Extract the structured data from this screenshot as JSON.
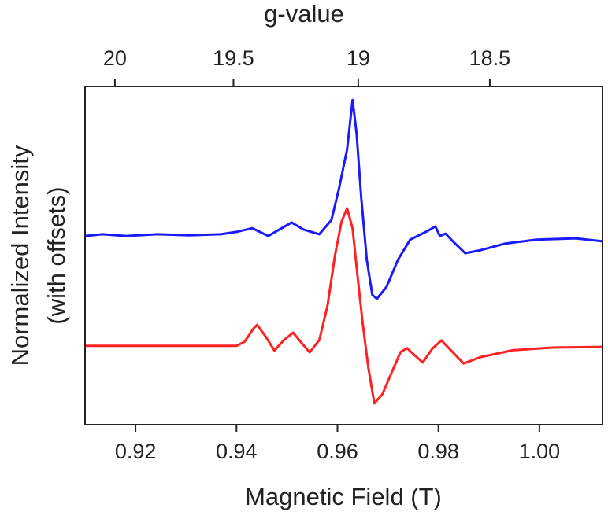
{
  "chart_data": {
    "type": "line",
    "xlabel": "Magnetic Field (T)",
    "ylabel": [
      "Normalized Intensity",
      "(with offsets)"
    ],
    "x2label": "g-value",
    "xlim": [
      0.91,
      1.0125
    ],
    "xticks": [
      0.92,
      0.94,
      0.96,
      0.98,
      {
        "value": 1.0,
        "label": "1.00"
      }
    ],
    "x2scale": "reciprocal",
    "x2lim": [
      20.13,
      18.09
    ],
    "x2ticks": [
      20,
      19.5,
      19,
      18.5
    ],
    "ylim": [
      0,
      100
    ],
    "series": [
      {
        "color": "#1a1aff",
        "x": [
          0.91,
          0.9134,
          0.9181,
          0.9244,
          0.9306,
          0.9369,
          0.94,
          0.9431,
          0.9463,
          0.9509,
          0.9533,
          0.9564,
          0.9588,
          0.9603,
          0.9619,
          0.963,
          0.9638,
          0.9647,
          0.9658,
          0.9669,
          0.9678,
          0.9697,
          0.972,
          0.9744,
          0.9775,
          0.9794,
          0.9803,
          0.9814,
          0.983,
          0.9853,
          0.9884,
          0.9931,
          0.9994,
          1.0072,
          1.0125
        ],
        "values": [
          55.8,
          56.3,
          55.8,
          56.3,
          56.0,
          56.3,
          57.0,
          58.1,
          55.8,
          59.8,
          57.7,
          56.3,
          60.5,
          69.8,
          81.4,
          96,
          86,
          67.4,
          48.8,
          38.4,
          37.2,
          40.7,
          48.8,
          54.7,
          57,
          58.6,
          55.8,
          56.5,
          54,
          50.7,
          51.6,
          53.5,
          54.7,
          55.1,
          54.2
        ]
      },
      {
        "color": "#ff2020",
        "x": [
          0.91,
          0.92,
          0.93,
          0.94,
          0.9416,
          0.9425,
          0.9434,
          0.9441,
          0.9458,
          0.9475,
          0.9494,
          0.9512,
          0.953,
          0.9545,
          0.9564,
          0.958,
          0.9595,
          0.9608,
          0.9619,
          0.963,
          0.9639,
          0.965,
          0.9661,
          0.9673,
          0.9689,
          0.9709,
          0.9725,
          0.9738,
          0.9753,
          0.9769,
          0.9788,
          0.9806,
          0.9828,
          0.985,
          0.9884,
          0.9947,
          1.0025,
          1.0125
        ],
        "values": [
          23.3,
          23.3,
          23.3,
          23.3,
          24.5,
          26.5,
          28.5,
          29.5,
          26,
          21.9,
          25,
          27.2,
          24,
          21.4,
          25,
          35,
          50,
          60,
          64,
          58,
          45,
          30,
          17,
          6.3,
          9,
          16,
          21.5,
          22.6,
          20.5,
          18.4,
          22.5,
          24.9,
          21.5,
          18.1,
          20,
          22,
          22.8,
          23
        ]
      }
    ]
  }
}
